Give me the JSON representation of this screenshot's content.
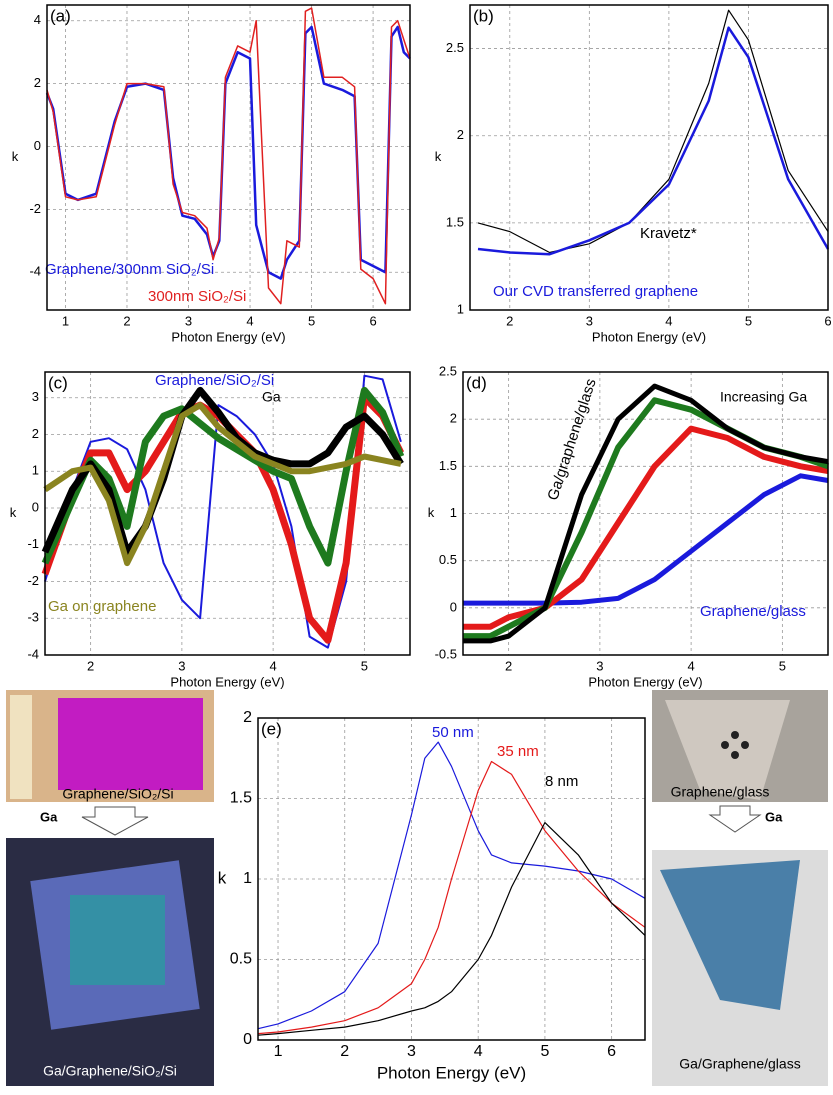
{
  "chart_data": [
    {
      "type": "line",
      "title": "(a)",
      "x_label": "Photon Energy (eV)",
      "y_label": "k",
      "x": [
        0.7,
        0.8,
        1.0,
        1.2,
        1.5,
        1.8,
        2.0,
        2.3,
        2.6,
        2.75,
        2.9,
        3.1,
        3.3,
        3.4,
        3.5,
        3.6,
        3.8,
        4.0,
        4.1,
        4.3,
        4.5,
        4.6,
        4.8,
        4.9,
        5.0,
        5.2,
        5.5,
        5.7,
        5.8,
        6.0,
        6.2,
        6.3,
        6.4,
        6.5,
        6.6
      ],
      "series": [
        {
          "name": "Graphene/300nm SiO₂/Si",
          "color": "#1a1adc",
          "values": [
            1.7,
            1.2,
            -1.5,
            -1.7,
            -1.5,
            0.8,
            1.9,
            2.0,
            1.8,
            -1.0,
            -2.2,
            -2.3,
            -2.8,
            -3.5,
            -3.0,
            2.0,
            3.0,
            2.8,
            -2.5,
            -4.0,
            -4.2,
            -3.6,
            -3.0,
            3.6,
            3.8,
            2.0,
            1.8,
            1.6,
            -3.6,
            -3.8,
            -4.0,
            3.5,
            3.8,
            3.0,
            2.8
          ]
        },
        {
          "name": "300nm SiO₂/Si",
          "color": "#e02020",
          "values": [
            1.8,
            1.1,
            -1.6,
            -1.7,
            -1.6,
            0.7,
            2.0,
            2.0,
            1.9,
            -1.2,
            -2.1,
            -2.2,
            -2.6,
            -3.6,
            -2.9,
            2.2,
            3.2,
            3.0,
            4.0,
            -4.5,
            -5.0,
            -3.0,
            -3.2,
            4.3,
            4.4,
            2.2,
            2.2,
            1.9,
            -3.9,
            -4.2,
            -5.0,
            3.8,
            4.0,
            3.4,
            2.8
          ]
        }
      ],
      "xlim": [
        0.7,
        6.6
      ],
      "ylim": [
        -5.2,
        4.5
      ],
      "xticks": [
        1,
        2,
        3,
        4,
        5,
        6
      ],
      "yticks": [
        -4,
        -2,
        0,
        2,
        4
      ],
      "grid": true
    },
    {
      "type": "line",
      "title": "(b)",
      "x_label": "Photon Energy (eV)",
      "y_label": "k",
      "x": [
        1.6,
        2.0,
        2.5,
        3.0,
        3.5,
        4.0,
        4.5,
        4.75,
        5.0,
        5.5,
        6.0
      ],
      "series": [
        {
          "name": "Kravetz*",
          "color": "#000000",
          "values": [
            1.5,
            1.45,
            1.33,
            1.38,
            1.5,
            1.75,
            2.3,
            2.72,
            2.55,
            1.8,
            1.45
          ]
        },
        {
          "name": "Our CVD transferred graphene",
          "color": "#1a1adc",
          "values": [
            1.35,
            1.33,
            1.32,
            1.4,
            1.5,
            1.72,
            2.2,
            2.62,
            2.45,
            1.75,
            1.35
          ]
        }
      ],
      "xlim": [
        1.5,
        6
      ],
      "ylim": [
        1,
        2.75
      ],
      "xticks": [
        2,
        3,
        4,
        5,
        6
      ],
      "yticks": [
        1,
        1.5,
        2,
        2.5
      ],
      "grid": true
    },
    {
      "type": "line",
      "title": "(c)",
      "x_label": "Photon Energy (eV)",
      "y_label": "k",
      "annotations": [
        "Ga"
      ],
      "x": [
        1.5,
        1.8,
        2.0,
        2.2,
        2.4,
        2.6,
        2.8,
        3.0,
        3.2,
        3.4,
        3.6,
        3.8,
        4.0,
        4.2,
        4.4,
        4.6,
        4.8,
        5.0,
        5.2,
        5.4
      ],
      "series": [
        {
          "name": "Graphene/SiO₂/Si",
          "color": "#1a1adc",
          "values": [
            -2,
            0.5,
            1.8,
            1.9,
            1.6,
            0.5,
            -1.5,
            -2.5,
            -3,
            2.8,
            2.5,
            2.0,
            1.2,
            -0.5,
            -3.5,
            -3.8,
            -2,
            3.6,
            3.5,
            1.8
          ]
        },
        {
          "color": "#e41a1a",
          "values": [
            -1.8,
            0.3,
            1.5,
            1.5,
            0.5,
            1.0,
            1.8,
            2.6,
            2.8,
            2.5,
            2.0,
            1.5,
            0.5,
            -1.0,
            -3.0,
            -3.6,
            -1.5,
            3.0,
            2.5,
            1.5
          ]
        },
        {
          "color": "#1e7a1e",
          "values": [
            -1.5,
            0.2,
            1.3,
            0.8,
            -0.5,
            1.8,
            2.5,
            2.7,
            2.3,
            1.9,
            1.6,
            1.3,
            1.0,
            0.8,
            -0.5,
            -1.5,
            1.0,
            3.2,
            2.6,
            1.4
          ]
        },
        {
          "color": "#000000",
          "values": [
            -1.2,
            0.5,
            1.2,
            0.5,
            -1.2,
            -0.5,
            0.8,
            2.5,
            3.2,
            2.6,
            1.9,
            1.5,
            1.3,
            1.2,
            1.2,
            1.5,
            2.2,
            2.5,
            2.0,
            1.2
          ]
        },
        {
          "name": "Ga on graphene",
          "color": "#8a8420",
          "values": [
            0.5,
            1.0,
            1.1,
            0.2,
            -1.5,
            -0.5,
            1.0,
            2.5,
            2.8,
            2.2,
            1.8,
            1.4,
            1.2,
            1.0,
            1.0,
            1.1,
            1.2,
            1.4,
            1.3,
            1.2
          ]
        }
      ],
      "xlim": [
        1.5,
        5.5
      ],
      "ylim": [
        -4,
        3.7
      ],
      "xticks": [
        2,
        3,
        4,
        5
      ],
      "yticks": [
        -4,
        -3,
        -2,
        -1,
        0,
        1,
        2,
        3
      ],
      "grid": true
    },
    {
      "type": "line",
      "title": "(d)",
      "x_label": "Photon Energy (eV)",
      "y_label": "k",
      "annotations": [
        "Increasing Ga"
      ],
      "x": [
        1.5,
        1.8,
        2.0,
        2.4,
        2.8,
        3.2,
        3.6,
        4.0,
        4.4,
        4.8,
        5.2,
        5.5
      ],
      "series": [
        {
          "name": "Graphene/glass",
          "color": "#1a1adc",
          "values": [
            0.05,
            0.05,
            0.05,
            0.05,
            0.06,
            0.1,
            0.3,
            0.6,
            0.9,
            1.2,
            1.4,
            1.35
          ]
        },
        {
          "color": "#e41a1a",
          "values": [
            -0.2,
            -0.2,
            -0.1,
            0.0,
            0.3,
            0.9,
            1.5,
            1.9,
            1.8,
            1.6,
            1.5,
            1.45
          ]
        },
        {
          "color": "#1e7a1e",
          "values": [
            -0.3,
            -0.3,
            -0.2,
            0.0,
            0.8,
            1.7,
            2.2,
            2.1,
            1.9,
            1.7,
            1.6,
            1.5
          ]
        },
        {
          "name": "Ga/graphene/glass",
          "color": "#000000",
          "values": [
            -0.35,
            -0.35,
            -0.3,
            0.0,
            1.2,
            2.0,
            2.35,
            2.2,
            1.9,
            1.7,
            1.6,
            1.55
          ]
        }
      ],
      "xlim": [
        1.5,
        5.5
      ],
      "ylim": [
        -0.5,
        2.5
      ],
      "xticks": [
        2,
        3,
        4,
        5
      ],
      "yticks": [
        -0.5,
        0,
        0.5,
        1,
        1.5,
        2,
        2.5
      ],
      "grid": true
    },
    {
      "type": "line",
      "title": "(e)",
      "x_label": "Photon Energy (eV)",
      "y_label": "k",
      "x": [
        0.7,
        1,
        1.5,
        2,
        2.5,
        3,
        3.2,
        3.4,
        3.6,
        4,
        4.2,
        4.5,
        5,
        5.5,
        6,
        6.5
      ],
      "series": [
        {
          "name": "50 nm",
          "color": "#1a1adc",
          "values": [
            0.07,
            0.1,
            0.18,
            0.3,
            0.6,
            1.4,
            1.75,
            1.85,
            1.7,
            1.3,
            1.15,
            1.1,
            1.08,
            1.05,
            1.0,
            0.88
          ]
        },
        {
          "name": "35 nm",
          "color": "#e41a1a",
          "values": [
            0.04,
            0.05,
            0.08,
            0.12,
            0.2,
            0.35,
            0.5,
            0.7,
            1.0,
            1.55,
            1.73,
            1.65,
            1.3,
            1.05,
            0.85,
            0.7
          ]
        },
        {
          "name": "8 nm",
          "color": "#000000",
          "values": [
            0.03,
            0.04,
            0.06,
            0.08,
            0.12,
            0.18,
            0.2,
            0.24,
            0.3,
            0.5,
            0.65,
            0.95,
            1.35,
            1.15,
            0.85,
            0.65
          ]
        }
      ],
      "xlim": [
        0.7,
        6.5
      ],
      "ylim": [
        0,
        2
      ],
      "xticks": [
        1,
        2,
        3,
        4,
        5,
        6
      ],
      "yticks": [
        0,
        0.5,
        1,
        1.5,
        2
      ],
      "grid": true
    }
  ],
  "photos": {
    "left": {
      "top": "Graphene/SiO₂/Si",
      "arrow": "Ga",
      "bottom": "Ga/Graphene/SiO₂/Si"
    },
    "right": {
      "top": "Graphene/glass",
      "arrow": "Ga",
      "bottom": "Ga/Graphene/glass"
    }
  }
}
